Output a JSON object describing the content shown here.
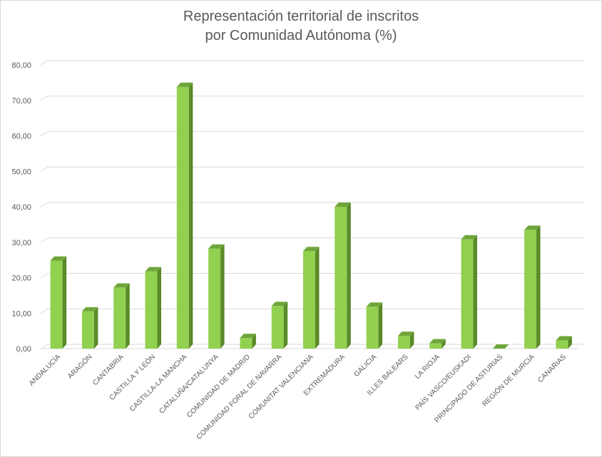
{
  "chart_data": {
    "type": "bar",
    "title_line1": "Representación territorial de inscritos",
    "title_line2": "por Comunidad Autónoma (%)",
    "xlabel": "",
    "ylabel": "",
    "ylim": [
      0,
      80
    ],
    "ytick_step": 10,
    "ytick_labels": [
      "0,00",
      "10,00",
      "20,00",
      "30,00",
      "40,00",
      "50,00",
      "60,00",
      "70,00",
      "80,00"
    ],
    "grid": true,
    "legend": "none",
    "categories": [
      "ANDALUCÍA",
      "ARAGÓN",
      "CANTABRIA",
      "CASTILLA Y LEÓN",
      "CASTILLA-LA MANCHA",
      "CATALUÑA/CATALUNYA",
      "COMUNIDAD DE MADRID",
      "COMUNIDAD FORAL DE NAVARRA",
      "COMUNITAT VALENCIANA",
      "EXTREMADURA",
      "GALICIA",
      "ILLES BALEARS",
      "LA RIOJA",
      "PAÍS VASCO/EUSKADI",
      "PRINCIPADO DE ASTURIAS",
      "REGIÓN DE MURCIA",
      "CANARIAS"
    ],
    "values": [
      24.8,
      10.5,
      17.2,
      21.8,
      73.8,
      28.2,
      3.0,
      12.0,
      27.5,
      40.0,
      11.8,
      3.6,
      1.5,
      30.8,
      0.0,
      33.5,
      2.3
    ],
    "colors": {
      "front": "#92d050",
      "side": "#5a8a2a",
      "top": "#6fa63a",
      "grid": "#d9d9d9",
      "text": "#595959"
    }
  }
}
